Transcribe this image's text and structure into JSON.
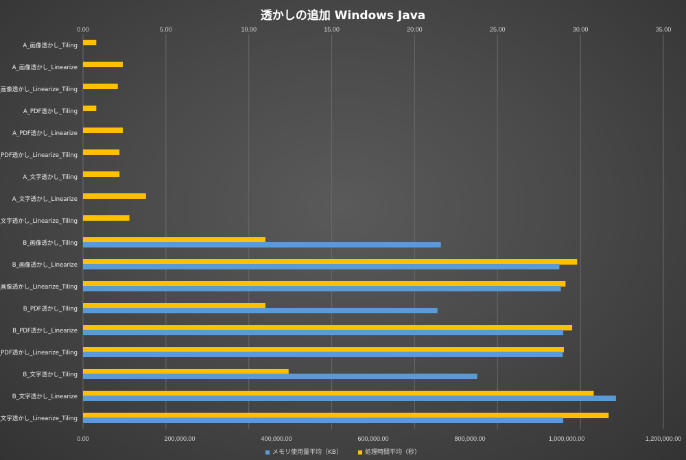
{
  "chart_data": {
    "type": "bar",
    "orientation": "horizontal",
    "title": "透かしの追加 Windows Java",
    "categories": [
      "A_画像透かし_Tiling",
      "A_画像透かし_Linearize",
      "A_画像透かし_Linearize_Tiling",
      "A_PDF透かし_Tiling",
      "A_PDF透かし_Linearize",
      "A_PDF透かし_Linearize_Tiling",
      "A_文字透かし_Tiling",
      "A_文字透かし_Linearize",
      "A_文字透かし_Linearize_Tiling",
      "B_画像透かし_Tiling",
      "B_画像透かし_Linearize",
      "B_画像透かし_Linearize_Tiling",
      "B_PDF透かし_Tiling",
      "B_PDF透かし_Linearize",
      "B_PDF透かし_Linearize_Tiling",
      "B_文字透かし_Tiling",
      "B_文字透かし_Linearize",
      "B_文字透かし_Linearize_Tiling"
    ],
    "series": [
      {
        "name": "処理時間平均（秒）",
        "axis": "top",
        "color": "#ffc000",
        "values": [
          0.8,
          2.4,
          2.1,
          0.8,
          2.4,
          2.2,
          2.2,
          3.8,
          2.8,
          11.0,
          29.8,
          29.1,
          11.0,
          29.5,
          29.0,
          12.4,
          30.8,
          31.7
        ]
      },
      {
        "name": "メモリ使用量平均（KB）",
        "axis": "bottom",
        "color": "#5b9bd5",
        "values": [
          0,
          0,
          0,
          0,
          0,
          0,
          0,
          0,
          0,
          740000,
          985000,
          988000,
          733000,
          993000,
          992000,
          815000,
          1102000,
          993000
        ]
      }
    ],
    "x_top": {
      "ylim": [
        0,
        35
      ],
      "ticks": [
        "0.00",
        "5.00",
        "10.00",
        "15.00",
        "20.00",
        "25.00",
        "30.00",
        "35.00"
      ]
    },
    "x_bottom": {
      "ylim": [
        0,
        1200000
      ],
      "ticks": [
        "0.00",
        "200,000.00",
        "400,000.00",
        "600,000.00",
        "800,000.00",
        "1,000,000.00",
        "1,200,000.00"
      ]
    },
    "grid": true,
    "legend_position": "bottom"
  }
}
